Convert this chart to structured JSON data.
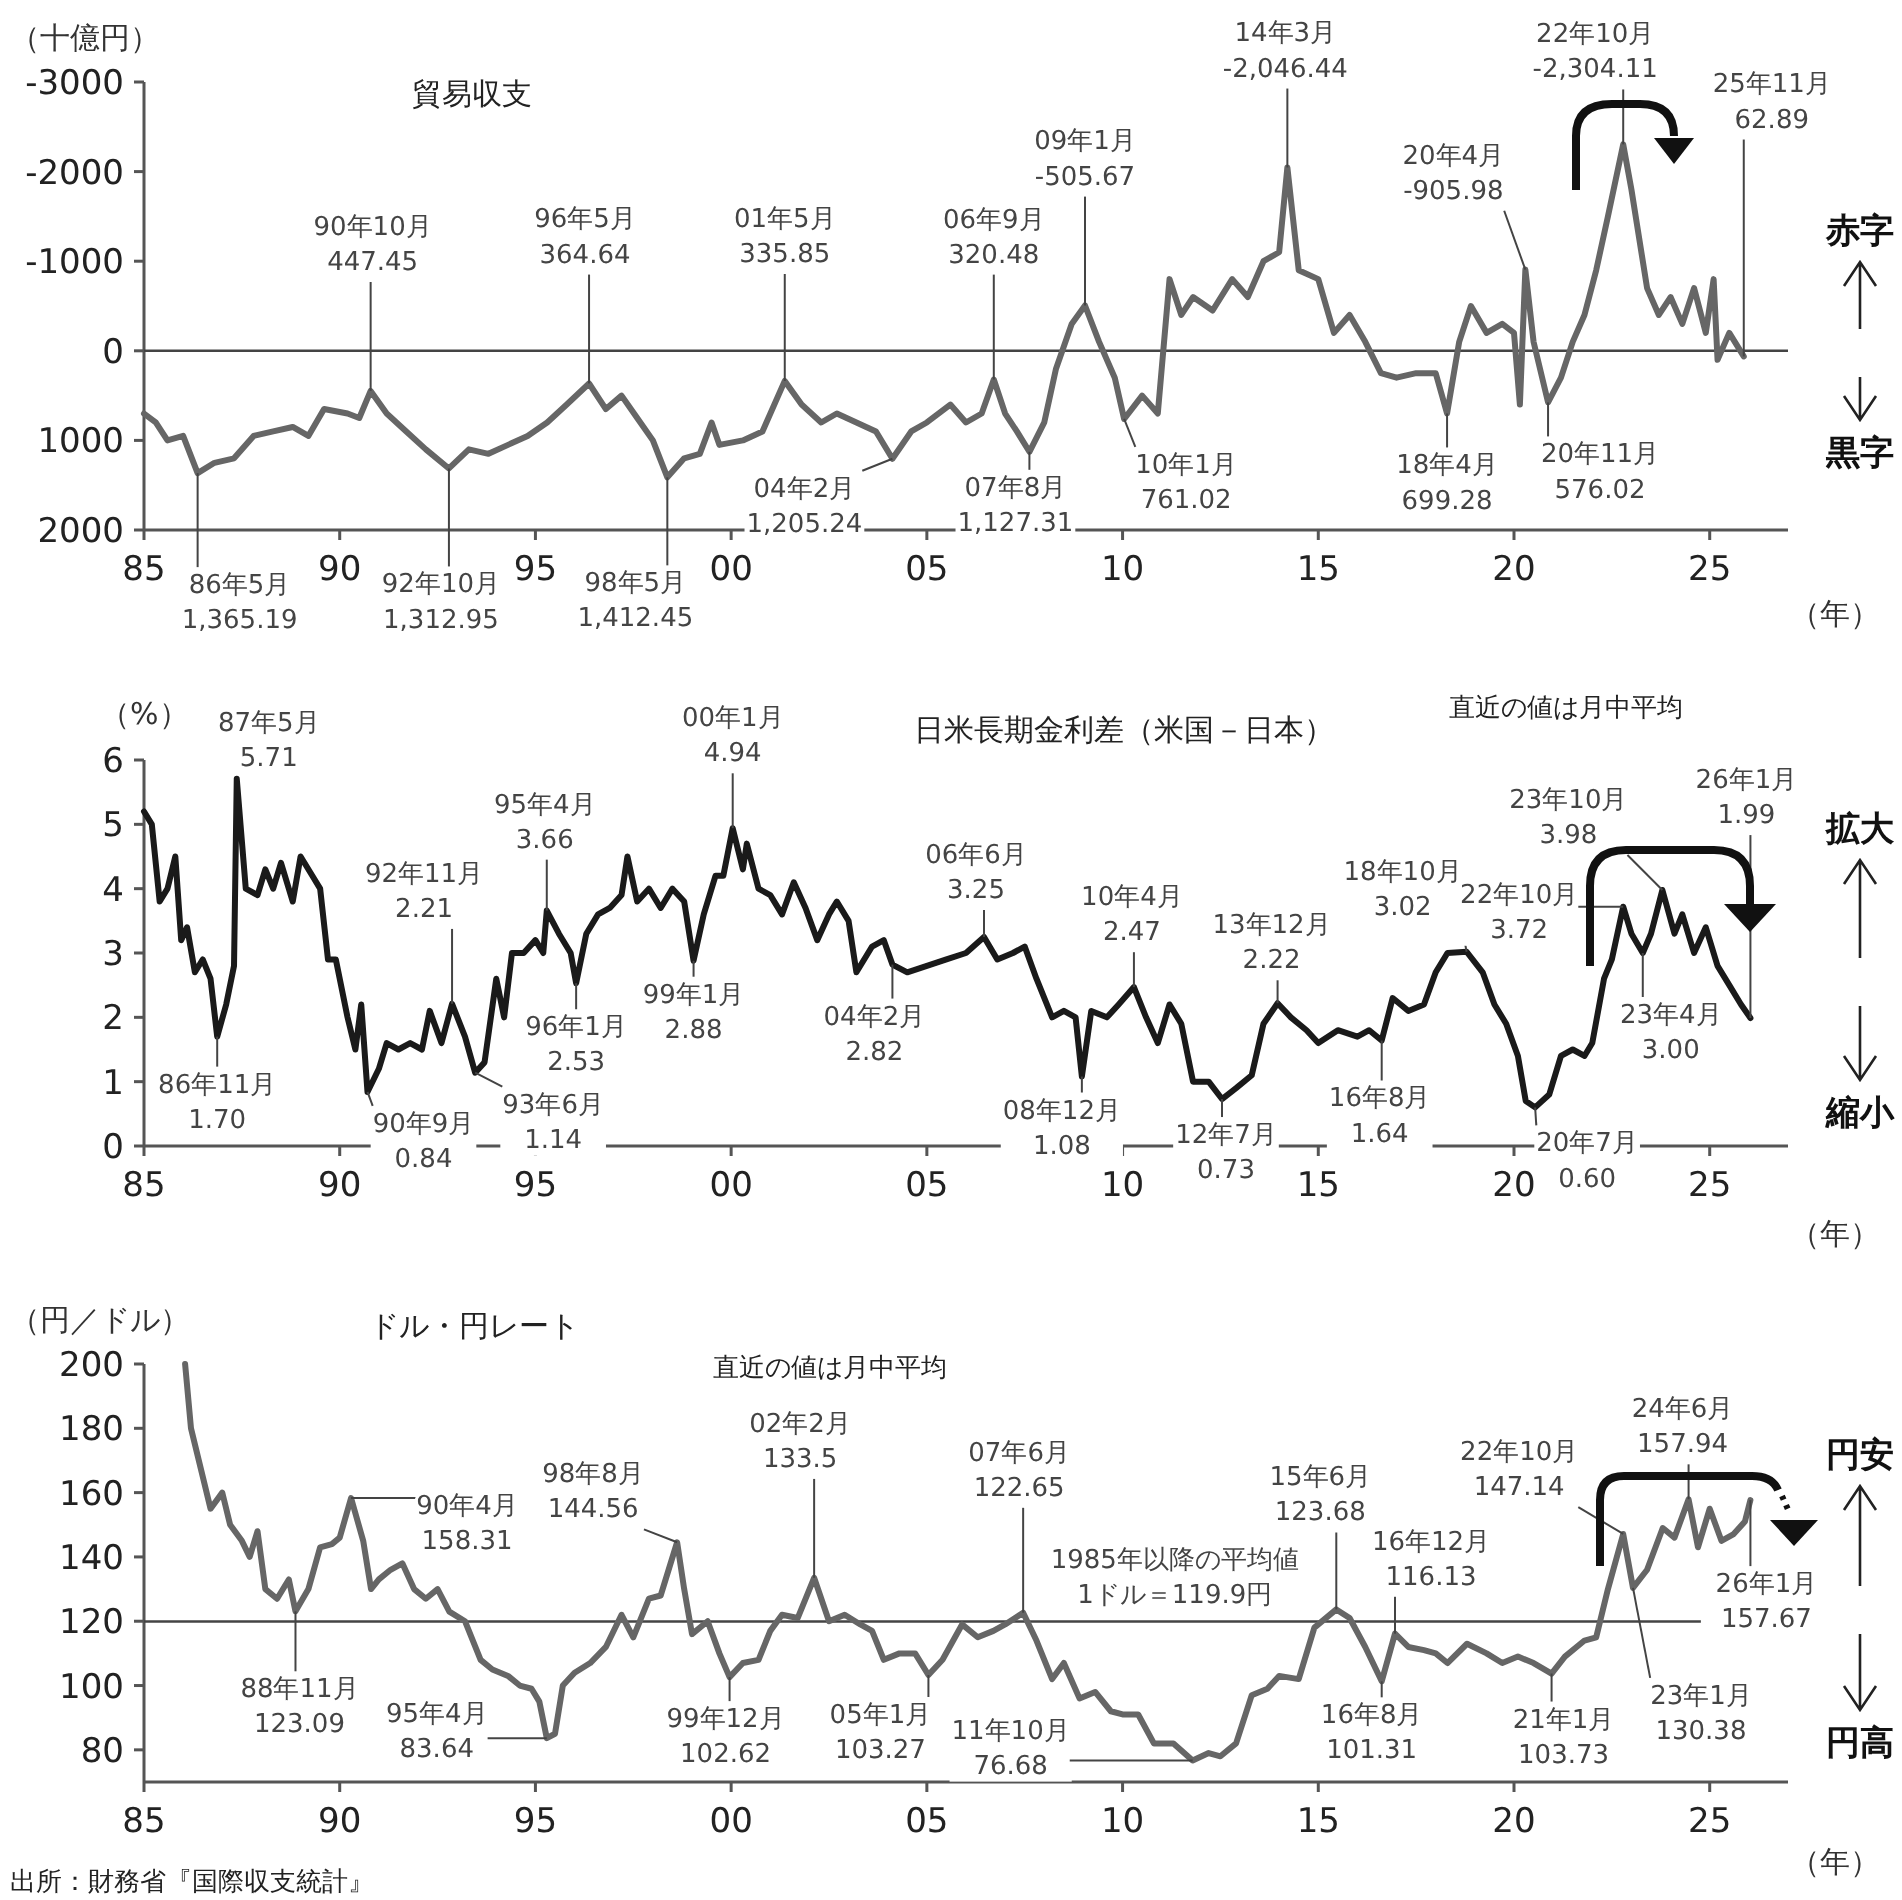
{
  "chart_data": [
    {
      "type": "line",
      "title": "貿易収支",
      "ylabel": "（十億円）",
      "xlabel": "（年）",
      "xlim": [
        1985,
        2027
      ],
      "ylim": [
        2000,
        -3000
      ],
      "xticks": [
        {
          "value": 1985,
          "label": "85"
        },
        {
          "value": 1990,
          "label": "90"
        },
        {
          "value": 1995,
          "label": "95"
        },
        {
          "value": 2000,
          "label": "00"
        },
        {
          "value": 2005,
          "label": "05"
        },
        {
          "value": 2010,
          "label": "10"
        },
        {
          "value": 2015,
          "label": "15"
        },
        {
          "value": 2020,
          "label": "20"
        },
        {
          "value": 2025,
          "label": "25"
        }
      ],
      "yticks": [
        -3000,
        -2000,
        -1000,
        0,
        1000,
        2000
      ],
      "ref_lines": [
        {
          "axis": "y",
          "value": 0
        }
      ],
      "series": [
        {
          "color": "#666666",
          "x": [
            1985.0,
            1985.3,
            1985.6,
            1986.0,
            1986.37,
            1986.8,
            1987.3,
            1987.8,
            1988.3,
            1988.8,
            1989.2,
            1989.6,
            1990.2,
            1990.5,
            1990.79,
            1991.2,
            1991.7,
            1992.2,
            1992.79,
            1993.3,
            1993.8,
            1994.3,
            1994.8,
            1995.3,
            1995.8,
            1996.37,
            1996.8,
            1997.2,
            1997.6,
            1998.0,
            1998.37,
            1998.8,
            1999.2,
            1999.5,
            1999.7,
            2000.3,
            2000.8,
            2001.37,
            2001.8,
            2002.3,
            2002.7,
            2003.2,
            2003.7,
            2004.12,
            2004.6,
            2005.0,
            2005.6,
            2006.0,
            2006.4,
            2006.71,
            2007.0,
            2007.3,
            2007.62,
            2008.0,
            2008.3,
            2008.7,
            2009.04,
            2009.4,
            2009.8,
            2010.04,
            2010.5,
            2010.9,
            2011.2,
            2011.5,
            2011.8,
            2012.3,
            2012.8,
            2013.2,
            2013.6,
            2014.0,
            2014.21,
            2014.5,
            2015.0,
            2015.4,
            2015.8,
            2016.2,
            2016.6,
            2017.0,
            2017.5,
            2018.0,
            2018.29,
            2018.6,
            2018.9,
            2019.3,
            2019.7,
            2020.0,
            2020.15,
            2020.29,
            2020.5,
            2020.87,
            2021.2,
            2021.5,
            2021.8,
            2022.1,
            2022.4,
            2022.79,
            2023.0,
            2023.4,
            2023.7,
            2024.0,
            2024.3,
            2024.6,
            2024.9,
            2025.1,
            2025.2,
            2025.5,
            2025.87
          ],
          "values": [
            700,
            800,
            1000,
            950,
            1365.19,
            1250,
            1200,
            950,
            900,
            850,
            950,
            650,
            700,
            750,
            447.45,
            700,
            900,
            1100,
            1312.95,
            1100,
            1150,
            1050,
            950,
            800,
            600,
            364.64,
            650,
            500,
            750,
            1000,
            1412.45,
            1200,
            1150,
            800,
            1050,
            1000,
            900,
            335.85,
            600,
            800,
            700,
            800,
            900,
            1205.24,
            900,
            800,
            600,
            800,
            700,
            320.48,
            700,
            900,
            1127.31,
            800,
            200,
            -300,
            -505.67,
            -100,
            300,
            761.02,
            500,
            700,
            -800,
            -400,
            -600,
            -450,
            -800,
            -600,
            -1000,
            -1100,
            -2046.44,
            -900,
            -800,
            -200,
            -400,
            -100,
            250,
            300,
            250,
            250,
            699.28,
            -100,
            -500,
            -200,
            -300,
            -200,
            600,
            -905.98,
            -100,
            576.02,
            300,
            -100,
            -400,
            -900,
            -1500,
            -2304.11,
            -1800,
            -700,
            -400,
            -600,
            -300,
            -700,
            -200,
            -800,
            100,
            -200,
            62.89
          ]
        }
      ],
      "annotations": [
        {
          "text": "86年5月\n1,365.19",
          "x": 1986.37,
          "y": 1365.19
        },
        {
          "text": "90年10月\n447.45",
          "x": 1990.79,
          "y": 447.45
        },
        {
          "text": "92年10月\n1,312.95",
          "x": 1992.79,
          "y": 1312.95
        },
        {
          "text": "96年5月\n364.64",
          "x": 1996.37,
          "y": 364.64
        },
        {
          "text": "98年5月\n1,412.45",
          "x": 1998.37,
          "y": 1412.45
        },
        {
          "text": "01年5月\n335.85",
          "x": 2001.37,
          "y": 335.85
        },
        {
          "text": "04年2月\n1,205.24",
          "x": 2004.12,
          "y": 1205.24
        },
        {
          "text": "06年9月\n320.48",
          "x": 2006.71,
          "y": 320.48
        },
        {
          "text": "07年8月\n1,127.31",
          "x": 2007.62,
          "y": 1127.31
        },
        {
          "text": "09年1月\n-505.67",
          "x": 2009.04,
          "y": -505.67
        },
        {
          "text": "10年1月\n761.02",
          "x": 2010.04,
          "y": 761.02
        },
        {
          "text": "14年3月\n-2,046.44",
          "x": 2014.21,
          "y": -2046.44
        },
        {
          "text": "18年4月\n699.28",
          "x": 2018.29,
          "y": 699.28
        },
        {
          "text": "20年4月\n-905.98",
          "x": 2020.29,
          "y": -905.98
        },
        {
          "text": "20年11月\n576.02",
          "x": 2020.87,
          "y": 576.02
        },
        {
          "text": "22年10月\n-2,304.11",
          "x": 2022.79,
          "y": -2304.11
        },
        {
          "text": "25年11月\n62.89",
          "x": 2025.87,
          "y": 62.89
        },
        "赤字",
        "黒字"
      ]
    },
    {
      "type": "line",
      "title": "日米長期金利差（米国－日本）",
      "subtitle": "直近の値は月中平均",
      "ylabel": "（%）",
      "xlabel": "（年）",
      "xlim": [
        1985,
        2027
      ],
      "ylim": [
        0,
        6
      ],
      "xticks": [
        {
          "value": 1985,
          "label": "85"
        },
        {
          "value": 1990,
          "label": "90"
        },
        {
          "value": 1995,
          "label": "95"
        },
        {
          "value": 2000,
          "label": "00"
        },
        {
          "value": 2005,
          "label": "05"
        },
        {
          "value": 2010,
          "label": "10"
        },
        {
          "value": 2015,
          "label": "15"
        },
        {
          "value": 2020,
          "label": "20"
        },
        {
          "value": 2025,
          "label": "25"
        }
      ],
      "yticks": [
        0,
        1,
        2,
        3,
        4,
        5,
        6
      ],
      "series": [
        {
          "color": "#1a1a1a",
          "x": [
            1985.0,
            1985.2,
            1985.4,
            1985.6,
            1985.8,
            1985.95,
            1986.1,
            1986.3,
            1986.5,
            1986.7,
            1986.87,
            1987.1,
            1987.3,
            1987.37,
            1987.6,
            1987.9,
            1988.1,
            1988.3,
            1988.5,
            1988.8,
            1989.0,
            1989.3,
            1989.5,
            1989.7,
            1989.9,
            1990.2,
            1990.4,
            1990.55,
            1990.71,
            1991.0,
            1991.2,
            1991.5,
            1991.8,
            1992.1,
            1992.3,
            1992.6,
            1992.87,
            1993.2,
            1993.46,
            1993.7,
            1994.0,
            1994.2,
            1994.4,
            1994.7,
            1995.0,
            1995.2,
            1995.29,
            1995.6,
            1995.9,
            1996.04,
            1996.3,
            1996.6,
            1996.9,
            1997.2,
            1997.35,
            1997.6,
            1997.9,
            1998.2,
            1998.5,
            1998.8,
            1999.04,
            1999.3,
            1999.6,
            1999.8,
            2000.04,
            2000.3,
            2000.4,
            2000.7,
            2001.0,
            2001.3,
            2001.6,
            2001.9,
            2002.2,
            2002.5,
            2002.7,
            2003.0,
            2003.2,
            2003.6,
            2003.9,
            2004.12,
            2004.5,
            2005.0,
            2005.5,
            2006.0,
            2006.46,
            2006.8,
            2007.2,
            2007.5,
            2007.8,
            2008.2,
            2008.5,
            2008.8,
            2008.96,
            2009.2,
            2009.6,
            2009.9,
            2010.29,
            2010.6,
            2010.9,
            2011.2,
            2011.5,
            2011.8,
            2012.2,
            2012.54,
            2012.9,
            2013.3,
            2013.6,
            2013.96,
            2014.3,
            2014.7,
            2015.0,
            2015.5,
            2016.0,
            2016.3,
            2016.62,
            2016.9,
            2017.3,
            2017.7,
            2018.0,
            2018.3,
            2018.79,
            2019.2,
            2019.5,
            2019.8,
            2020.1,
            2020.3,
            2020.54,
            2020.9,
            2021.2,
            2021.5,
            2021.8,
            2022.0,
            2022.3,
            2022.5,
            2022.79,
            2023.0,
            2023.29,
            2023.5,
            2023.79,
            2024.1,
            2024.3,
            2024.6,
            2024.9,
            2025.2,
            2025.5,
            2025.8,
            2026.04
          ],
          "values": [
            5.2,
            5.0,
            3.8,
            4.0,
            4.5,
            3.2,
            3.4,
            2.7,
            2.9,
            2.6,
            1.7,
            2.2,
            2.8,
            5.71,
            4.0,
            3.9,
            4.3,
            4.0,
            4.4,
            3.8,
            4.5,
            4.2,
            4.0,
            2.9,
            2.9,
            2.0,
            1.5,
            2.2,
            0.84,
            1.2,
            1.6,
            1.5,
            1.6,
            1.5,
            2.1,
            1.6,
            2.21,
            1.7,
            1.14,
            1.3,
            2.6,
            2.0,
            3.0,
            3.0,
            3.2,
            3.0,
            3.66,
            3.3,
            3.0,
            2.53,
            3.3,
            3.6,
            3.7,
            3.9,
            4.5,
            3.8,
            4.0,
            3.7,
            4.0,
            3.8,
            2.88,
            3.6,
            4.2,
            4.2,
            4.94,
            4.3,
            4.7,
            4.0,
            3.9,
            3.6,
            4.1,
            3.7,
            3.2,
            3.6,
            3.8,
            3.5,
            2.7,
            3.1,
            3.2,
            2.82,
            2.7,
            2.8,
            2.9,
            3.0,
            3.25,
            2.9,
            3.0,
            3.1,
            2.6,
            2.0,
            2.1,
            2.0,
            1.08,
            2.1,
            2.0,
            2.2,
            2.47,
            2.0,
            1.6,
            2.2,
            1.9,
            1.0,
            1.0,
            0.73,
            0.9,
            1.1,
            1.9,
            2.22,
            2.0,
            1.8,
            1.6,
            1.8,
            1.7,
            1.8,
            1.64,
            2.3,
            2.1,
            2.2,
            2.7,
            3.0,
            3.02,
            2.7,
            2.2,
            1.9,
            1.4,
            0.7,
            0.6,
            0.8,
            1.4,
            1.5,
            1.4,
            1.6,
            2.6,
            2.9,
            3.72,
            3.3,
            3.0,
            3.3,
            3.98,
            3.3,
            3.6,
            3.0,
            3.4,
            2.8,
            2.5,
            2.2,
            1.99
          ]
        }
      ],
      "annotations": [
        {
          "text": "87年5月\n5.71",
          "x": 1987.37,
          "y": 5.71
        },
        {
          "text": "86年11月\n1.70",
          "x": 1986.87,
          "y": 1.7
        },
        {
          "text": "90年9月\n0.84",
          "x": 1990.71,
          "y": 0.84
        },
        {
          "text": "92年11月\n2.21",
          "x": 1992.87,
          "y": 2.21
        },
        {
          "text": "93年6月\n1.14",
          "x": 1993.46,
          "y": 1.14
        },
        {
          "text": "95年4月\n3.66",
          "x": 1995.29,
          "y": 3.66
        },
        {
          "text": "96年1月\n2.53",
          "x": 1996.04,
          "y": 2.53
        },
        {
          "text": "99年1月\n2.88",
          "x": 1999.04,
          "y": 2.88
        },
        {
          "text": "00年1月\n4.94",
          "x": 2000.04,
          "y": 4.94
        },
        {
          "text": "04年2月\n2.82",
          "x": 2004.12,
          "y": 2.82
        },
        {
          "text": "06年6月\n3.25",
          "x": 2006.46,
          "y": 3.25
        },
        {
          "text": "08年12月\n1.08",
          "x": 2008.96,
          "y": 1.08
        },
        {
          "text": "10年4月\n2.47",
          "x": 2010.29,
          "y": 2.47
        },
        {
          "text": "12年7月\n0.73",
          "x": 2012.54,
          "y": 0.73
        },
        {
          "text": "13年12月\n2.22",
          "x": 2013.96,
          "y": 2.22
        },
        {
          "text": "16年8月\n1.64",
          "x": 2016.62,
          "y": 1.64
        },
        {
          "text": "18年10月\n3.02",
          "x": 2018.79,
          "y": 3.02
        },
        {
          "text": "22年10月\n3.72",
          "x": 2022.79,
          "y": 3.72
        },
        {
          "text": "23年10月\n3.98",
          "x": 2023.79,
          "y": 3.98
        },
        {
          "text": "23年4月\n3.00",
          "x": 2023.29,
          "y": 3.0
        },
        {
          "text": "20年7月\n0.60",
          "x": 2020.54,
          "y": 0.6
        },
        {
          "text": "26年1月\n1.99",
          "x": 2026.04,
          "y": 1.99
        },
        "拡大",
        "縮小"
      ]
    },
    {
      "type": "line",
      "title": "ドル・円レート",
      "subtitle": "直近の値は月中平均",
      "ylabel": "（円／ドル）",
      "xlabel": "（年）",
      "xlim": [
        1985,
        2027
      ],
      "ylim": [
        70,
        200
      ],
      "xticks": [
        {
          "value": 1985,
          "label": "85"
        },
        {
          "value": 1990,
          "label": "90"
        },
        {
          "value": 1995,
          "label": "95"
        },
        {
          "value": 2000,
          "label": "00"
        },
        {
          "value": 2005,
          "label": "05"
        },
        {
          "value": 2010,
          "label": "10"
        },
        {
          "value": 2015,
          "label": "15"
        },
        {
          "value": 2020,
          "label": "20"
        },
        {
          "value": 2025,
          "label": "25"
        }
      ],
      "yticks": [
        80,
        100,
        120,
        140,
        160,
        180,
        200
      ],
      "ref_lines": [
        {
          "axis": "y",
          "value": 119.9,
          "label": "1985年以降の平均値\n1ドル＝119.9円"
        }
      ],
      "series": [
        {
          "color": "#666666",
          "x": [
            1986.05,
            1986.2,
            1986.5,
            1986.7,
            1987.0,
            1987.2,
            1987.5,
            1987.7,
            1987.9,
            1988.1,
            1988.4,
            1988.7,
            1988.87,
            1989.2,
            1989.5,
            1989.8,
            1990.0,
            1990.29,
            1990.6,
            1990.8,
            1991.0,
            1991.3,
            1991.6,
            1991.9,
            1992.2,
            1992.5,
            1992.8,
            1993.2,
            1993.6,
            1993.9,
            1994.3,
            1994.6,
            1994.9,
            1995.1,
            1995.29,
            1995.5,
            1995.7,
            1996.0,
            1996.4,
            1996.8,
            1997.2,
            1997.5,
            1997.9,
            1998.2,
            1998.62,
            1998.8,
            1999.0,
            1999.4,
            1999.7,
            1999.96,
            2000.3,
            2000.7,
            2001.0,
            2001.3,
            2001.7,
            2002.12,
            2002.5,
            2002.9,
            2003.3,
            2003.6,
            2003.9,
            2004.3,
            2004.7,
            2005.04,
            2005.4,
            2005.9,
            2006.3,
            2006.7,
            2007.0,
            2007.46,
            2007.8,
            2008.2,
            2008.5,
            2008.9,
            2009.3,
            2009.7,
            2010.0,
            2010.4,
            2010.8,
            2011.3,
            2011.79,
            2012.2,
            2012.5,
            2012.9,
            2013.3,
            2013.7,
            2014.0,
            2014.5,
            2014.9,
            2015.46,
            2015.8,
            2016.2,
            2016.62,
            2016.96,
            2017.3,
            2017.7,
            2018.0,
            2018.3,
            2018.8,
            2019.3,
            2019.7,
            2020.1,
            2020.5,
            2020.96,
            2021.3,
            2021.8,
            2022.1,
            2022.4,
            2022.79,
            2023.04,
            2023.4,
            2023.8,
            2024.1,
            2024.46,
            2024.7,
            2025.0,
            2025.3,
            2025.6,
            2025.9,
            2026.04
          ],
          "values": [
            200,
            180,
            165,
            155,
            160,
            150,
            145,
            140,
            148,
            130,
            127,
            133,
            123.09,
            130,
            143,
            144,
            146,
            158.31,
            145,
            130,
            133,
            136,
            138,
            130,
            127,
            130,
            123,
            120,
            108,
            105,
            103,
            100,
            99,
            95,
            83.64,
            85,
            100,
            104,
            107,
            112,
            122,
            115,
            127,
            128,
            144.56,
            130,
            116,
            120,
            110,
            102.62,
            107,
            108,
            117,
            122,
            121,
            133.5,
            120,
            122,
            119,
            117,
            108,
            110,
            110,
            103.27,
            108,
            119,
            115,
            117,
            119,
            122.65,
            114,
            102,
            107,
            96,
            98,
            92,
            91,
            91,
            82,
            82,
            76.68,
            79,
            78,
            82,
            97,
            99,
            103,
            102,
            118,
            123.68,
            121,
            112,
            101.31,
            116.13,
            112,
            111,
            110,
            107,
            113,
            110,
            107,
            109,
            107,
            103.73,
            109,
            114,
            115,
            130,
            147.14,
            130.38,
            136,
            149,
            146,
            157.94,
            143,
            155,
            145,
            147,
            151,
            157.67
          ]
        }
      ],
      "annotations": [
        {
          "text": "88年11月\n123.09",
          "x": 1988.87,
          "y": 123.09
        },
        {
          "text": "90年4月\n158.31",
          "x": 1990.29,
          "y": 158.31
        },
        {
          "text": "95年4月\n83.64",
          "x": 1995.29,
          "y": 83.64
        },
        {
          "text": "98年8月\n144.56",
          "x": 1998.62,
          "y": 144.56
        },
        {
          "text": "99年12月\n102.62",
          "x": 1999.96,
          "y": 102.62
        },
        {
          "text": "02年2月\n133.5",
          "x": 2002.12,
          "y": 133.5
        },
        {
          "text": "05年1月\n103.27",
          "x": 2005.04,
          "y": 103.27
        },
        {
          "text": "07年6月\n122.65",
          "x": 2007.46,
          "y": 122.65
        },
        {
          "text": "11年10月\n76.68",
          "x": 2011.79,
          "y": 76.68
        },
        {
          "text": "15年6月\n123.68",
          "x": 2015.46,
          "y": 123.68
        },
        {
          "text": "16年8月\n101.31",
          "x": 2016.62,
          "y": 101.31
        },
        {
          "text": "16年12月\n116.13",
          "x": 2016.96,
          "y": 116.13
        },
        {
          "text": "21年1月\n103.73",
          "x": 2020.96,
          "y": 103.73
        },
        {
          "text": "22年10月\n147.14",
          "x": 2022.79,
          "y": 147.14
        },
        {
          "text": "23年1月\n130.38",
          "x": 2023.04,
          "y": 130.38
        },
        {
          "text": "24年6月\n157.94",
          "x": 2024.46,
          "y": 157.94
        },
        {
          "text": "26年1月\n157.67",
          "x": 2026.04,
          "y": 157.67
        },
        "円安",
        "円高",
        "出所：財務省『国際収支統計』"
      ]
    }
  ]
}
